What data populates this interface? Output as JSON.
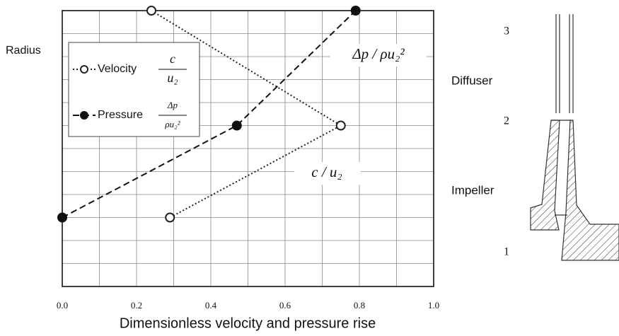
{
  "chart_data": {
    "type": "line",
    "xlabel": "Dimensionless velocity and pressure rise",
    "ylabel": "Radius",
    "xlim": [
      0,
      1
    ],
    "ylim": [
      0,
      12
    ],
    "xticks": [
      {
        "value": 0,
        "label": "0.0"
      },
      0.2,
      0.4,
      0.6,
      0.8,
      {
        "value": 1,
        "label": "1.0"
      }
    ],
    "xminor": [
      0.1,
      0.3,
      0.5,
      0.7,
      0.9
    ],
    "yticks": [
      0,
      1,
      2,
      3,
      4,
      5,
      6,
      7,
      8,
      9,
      10,
      11,
      12
    ],
    "grid": true,
    "series": [
      {
        "name": "Velocity",
        "formula": [
          "c",
          "u₂"
        ],
        "color": "#222222",
        "style": "dotted",
        "marker": "open",
        "x": [
          0.24,
          0.75,
          0.29
        ],
        "values": [
          12,
          7,
          3
        ]
      },
      {
        "name": "Pressure",
        "formula": [
          "Δp",
          "ρu₂²"
        ],
        "color": "#111111",
        "style": "dashed",
        "marker": "filled",
        "x": [
          0,
          0.47,
          0.79
        ],
        "values": [
          3,
          7,
          12
        ]
      }
    ],
    "annotations": [
      "Δp / ρu₂²",
      "c / u₂"
    ]
  },
  "diagram": {
    "labels": [
      "3",
      "Diffuser",
      "2",
      "Impeller",
      "1"
    ]
  }
}
